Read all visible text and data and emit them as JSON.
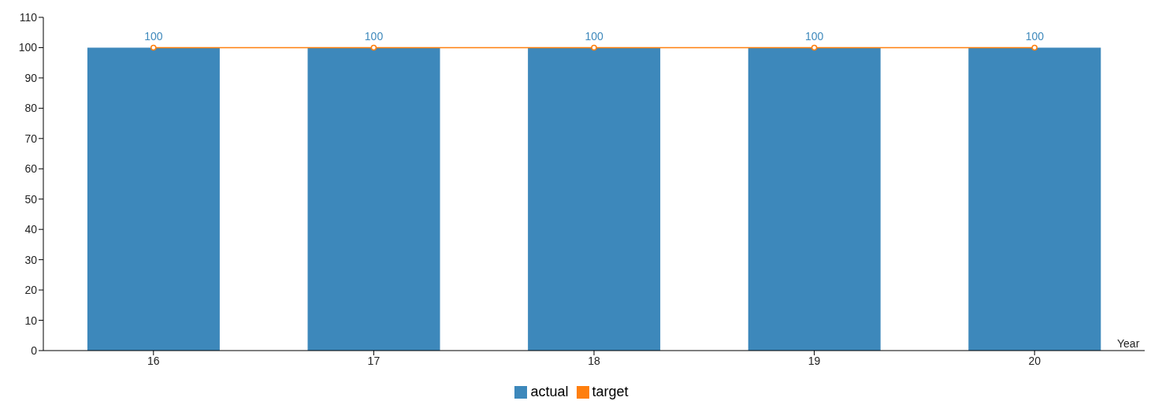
{
  "chart_data": {
    "type": "bar",
    "xlabel": "Year",
    "categories": [
      "16",
      "17",
      "18",
      "19",
      "20"
    ],
    "series": [
      {
        "name": "actual",
        "color": "#3d88bb",
        "values": [
          100,
          100,
          100,
          100,
          100
        ],
        "value_labels": [
          "100",
          "100",
          "100",
          "100",
          "100"
        ]
      },
      {
        "name": "target",
        "type": "line",
        "color": "#ff7f0e",
        "values": [
          100,
          100,
          100,
          100,
          100
        ],
        "marker": "circle",
        "line_style": "solid"
      }
    ],
    "ylim": [
      0,
      110
    ],
    "yticks": [
      0,
      10,
      20,
      30,
      40,
      50,
      60,
      70,
      80,
      90,
      100,
      110
    ],
    "legend": "bottom"
  }
}
